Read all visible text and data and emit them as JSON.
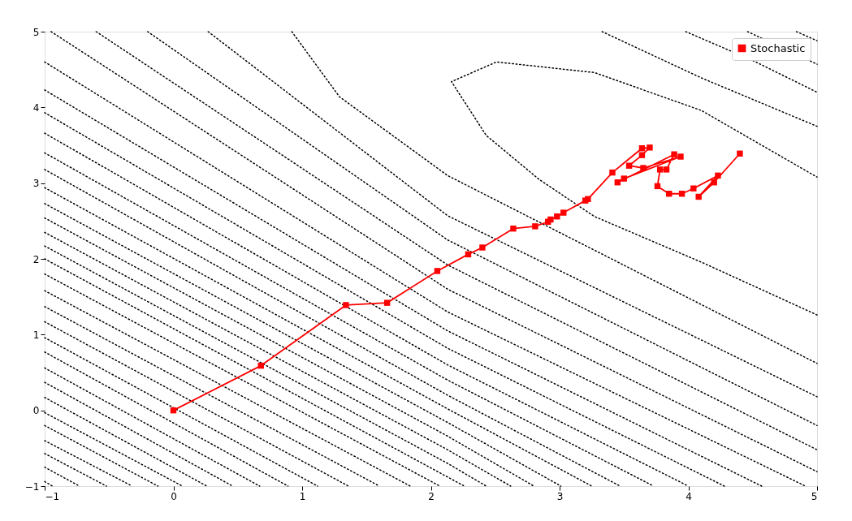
{
  "chart_data": {
    "type": "line",
    "xlim": [
      -1,
      5
    ],
    "ylim": [
      -1,
      5
    ],
    "xticks": [
      -1,
      0,
      1,
      2,
      3,
      4,
      5
    ],
    "yticks": [
      -1,
      0,
      1,
      2,
      3,
      4,
      5
    ],
    "legend": "top right",
    "line_style": "dotted",
    "marker": "none",
    "series": [
      {
        "name": "Stochastic",
        "color": "#ff0000",
        "line_style": "solid",
        "marker": "square",
        "x": [
          0,
          0.68,
          1.34,
          1.66,
          2.05,
          2.29,
          2.4,
          2.64,
          2.81,
          2.91,
          2.93,
          2.98,
          3.03,
          3.2,
          3.22,
          3.41,
          3.64,
          3.7,
          3.64,
          3.54,
          3.65,
          3.94,
          3.5,
          3.45,
          3.89,
          3.83,
          3.78,
          3.76,
          3.85,
          3.95,
          4.04,
          4.23,
          4.08,
          4.2,
          4.4
        ],
        "values": [
          0,
          0.59,
          1.39,
          1.42,
          1.84,
          2.06,
          2.15,
          2.4,
          2.43,
          2.49,
          2.52,
          2.56,
          2.61,
          2.77,
          2.79,
          3.14,
          3.46,
          3.47,
          3.37,
          3.23,
          3.2,
          3.35,
          3.06,
          3.01,
          3.38,
          3.18,
          3.18,
          2.96,
          2.86,
          2.86,
          2.93,
          3.1,
          2.82,
          3.01,
          3.39
        ]
      },
      {
        "color": "#000000",
        "x": [
          5,
          4.11,
          3.27,
          2.84,
          2.43,
          2.16,
          2.51,
          3.27,
          4.1,
          5
        ],
        "values": [
          1.26,
          1.95,
          2.56,
          3.05,
          3.63,
          4.34,
          4.6,
          4.46,
          3.96,
          3.08
        ]
      },
      {
        "color": "#000000",
        "x": [
          0.92,
          1.29,
          2.13,
          5
        ],
        "values": [
          5,
          4.14,
          3.1,
          0.62
        ]
      },
      {
        "color": "#000000",
        "x": [
          0.27,
          2.13,
          5
        ],
        "values": [
          5,
          2.57,
          0.18
        ]
      },
      {
        "color": "#000000",
        "x": [
          -0.2,
          2.13,
          5
        ],
        "values": [
          5,
          2.25,
          -0.2
        ]
      },
      {
        "color": "#000000",
        "x": [
          -0.6,
          2.13,
          5
        ],
        "values": [
          5,
          1.92,
          -0.52
        ]
      },
      {
        "color": "#000000",
        "x": [
          -0.95,
          2.13,
          5
        ],
        "values": [
          5,
          1.6,
          -0.81
        ]
      },
      {
        "color": "#000000",
        "x": [
          3.33,
          4.1,
          5
        ],
        "values": [
          5,
          4.39,
          3.75
        ]
      },
      {
        "color": "#000000",
        "x": [
          3.98,
          4.5,
          5
        ],
        "values": [
          5,
          4.62,
          4.2
        ]
      },
      {
        "color": "#000000",
        "x": [
          4.46,
          5
        ],
        "values": [
          5,
          4.57
        ]
      },
      {
        "color": "#000000",
        "x": [
          4.84,
          5
        ],
        "values": [
          5,
          4.88
        ]
      },
      {
        "color": "#000000",
        "x": [
          -1,
          2.13,
          4.91
        ],
        "values": [
          4.6,
          1.3,
          -1
        ]
      },
      {
        "color": "#000000",
        "x": [
          -1,
          2.13,
          4.57
        ],
        "values": [
          4.23,
          1.05,
          -1
        ]
      },
      {
        "color": "#000000",
        "x": [
          -1,
          2.13,
          4.28
        ],
        "values": [
          3.93,
          0.82,
          -1
        ]
      },
      {
        "color": "#000000",
        "x": [
          -1,
          2.13,
          4.0
        ],
        "values": [
          3.66,
          0.6,
          -1
        ]
      },
      {
        "color": "#000000",
        "x": [
          -1,
          2.13,
          3.73
        ],
        "values": [
          3.4,
          0.4,
          -1
        ]
      },
      {
        "color": "#000000",
        "x": [
          -1,
          2.13,
          3.47
        ],
        "values": [
          3.18,
          0.2,
          -1
        ]
      },
      {
        "color": "#000000",
        "x": [
          -1,
          2.13,
          3.25
        ],
        "values": [
          2.94,
          0.02,
          -1
        ]
      },
      {
        "color": "#000000",
        "x": [
          -1,
          2.13,
          3.01
        ],
        "values": [
          2.73,
          -0.16,
          -1
        ]
      },
      {
        "color": "#000000",
        "x": [
          -1,
          2.13,
          2.8
        ],
        "values": [
          2.54,
          -0.34,
          -1
        ]
      },
      {
        "color": "#000000",
        "x": [
          -1,
          2.13,
          2.62
        ],
        "values": [
          2.35,
          -0.52,
          -1
        ]
      },
      {
        "color": "#000000",
        "x": [
          -1,
          2.13,
          2.43
        ],
        "values": [
          2.17,
          -0.7,
          -1
        ]
      },
      {
        "color": "#000000",
        "x": [
          -1,
          2.13,
          2.26
        ],
        "values": [
          2.0,
          -0.88,
          -1
        ]
      },
      {
        "color": "#000000",
        "x": [
          -1,
          2.07
        ],
        "values": [
          1.8,
          -1
        ]
      },
      {
        "color": "#000000",
        "x": [
          -1,
          1.84
        ],
        "values": [
          1.58,
          -1
        ]
      },
      {
        "color": "#000000",
        "x": [
          -1,
          1.6
        ],
        "values": [
          1.37,
          -1
        ]
      },
      {
        "color": "#000000",
        "x": [
          -1,
          1.36
        ],
        "values": [
          1.17,
          -1
        ]
      },
      {
        "color": "#000000",
        "x": [
          -1,
          1.12
        ],
        "values": [
          0.96,
          -1
        ]
      },
      {
        "color": "#000000",
        "x": [
          -1,
          0.89
        ],
        "values": [
          0.77,
          -1
        ]
      },
      {
        "color": "#000000",
        "x": [
          -1,
          0.67
        ],
        "values": [
          0.56,
          -1
        ]
      },
      {
        "color": "#000000",
        "x": [
          -1,
          0.46
        ],
        "values": [
          0.37,
          -1
        ]
      },
      {
        "color": "#000000",
        "x": [
          -1,
          0.26
        ],
        "values": [
          0.17,
          -1
        ]
      },
      {
        "color": "#000000",
        "x": [
          -1,
          0.07
        ],
        "values": [
          -0.03,
          -1
        ]
      },
      {
        "color": "#000000",
        "x": [
          -1,
          -0.12
        ],
        "values": [
          -0.2,
          -1
        ]
      },
      {
        "color": "#000000",
        "x": [
          -1,
          -0.32
        ],
        "values": [
          -0.4,
          -1
        ]
      },
      {
        "color": "#000000",
        "x": [
          -1,
          -0.52
        ],
        "values": [
          -0.57,
          -1
        ]
      },
      {
        "color": "#000000",
        "x": [
          -1,
          -0.73
        ],
        "values": [
          -0.75,
          -1
        ]
      },
      {
        "color": "#000000",
        "x": [
          -1,
          -0.94
        ],
        "values": [
          -0.94,
          -1
        ]
      }
    ]
  }
}
